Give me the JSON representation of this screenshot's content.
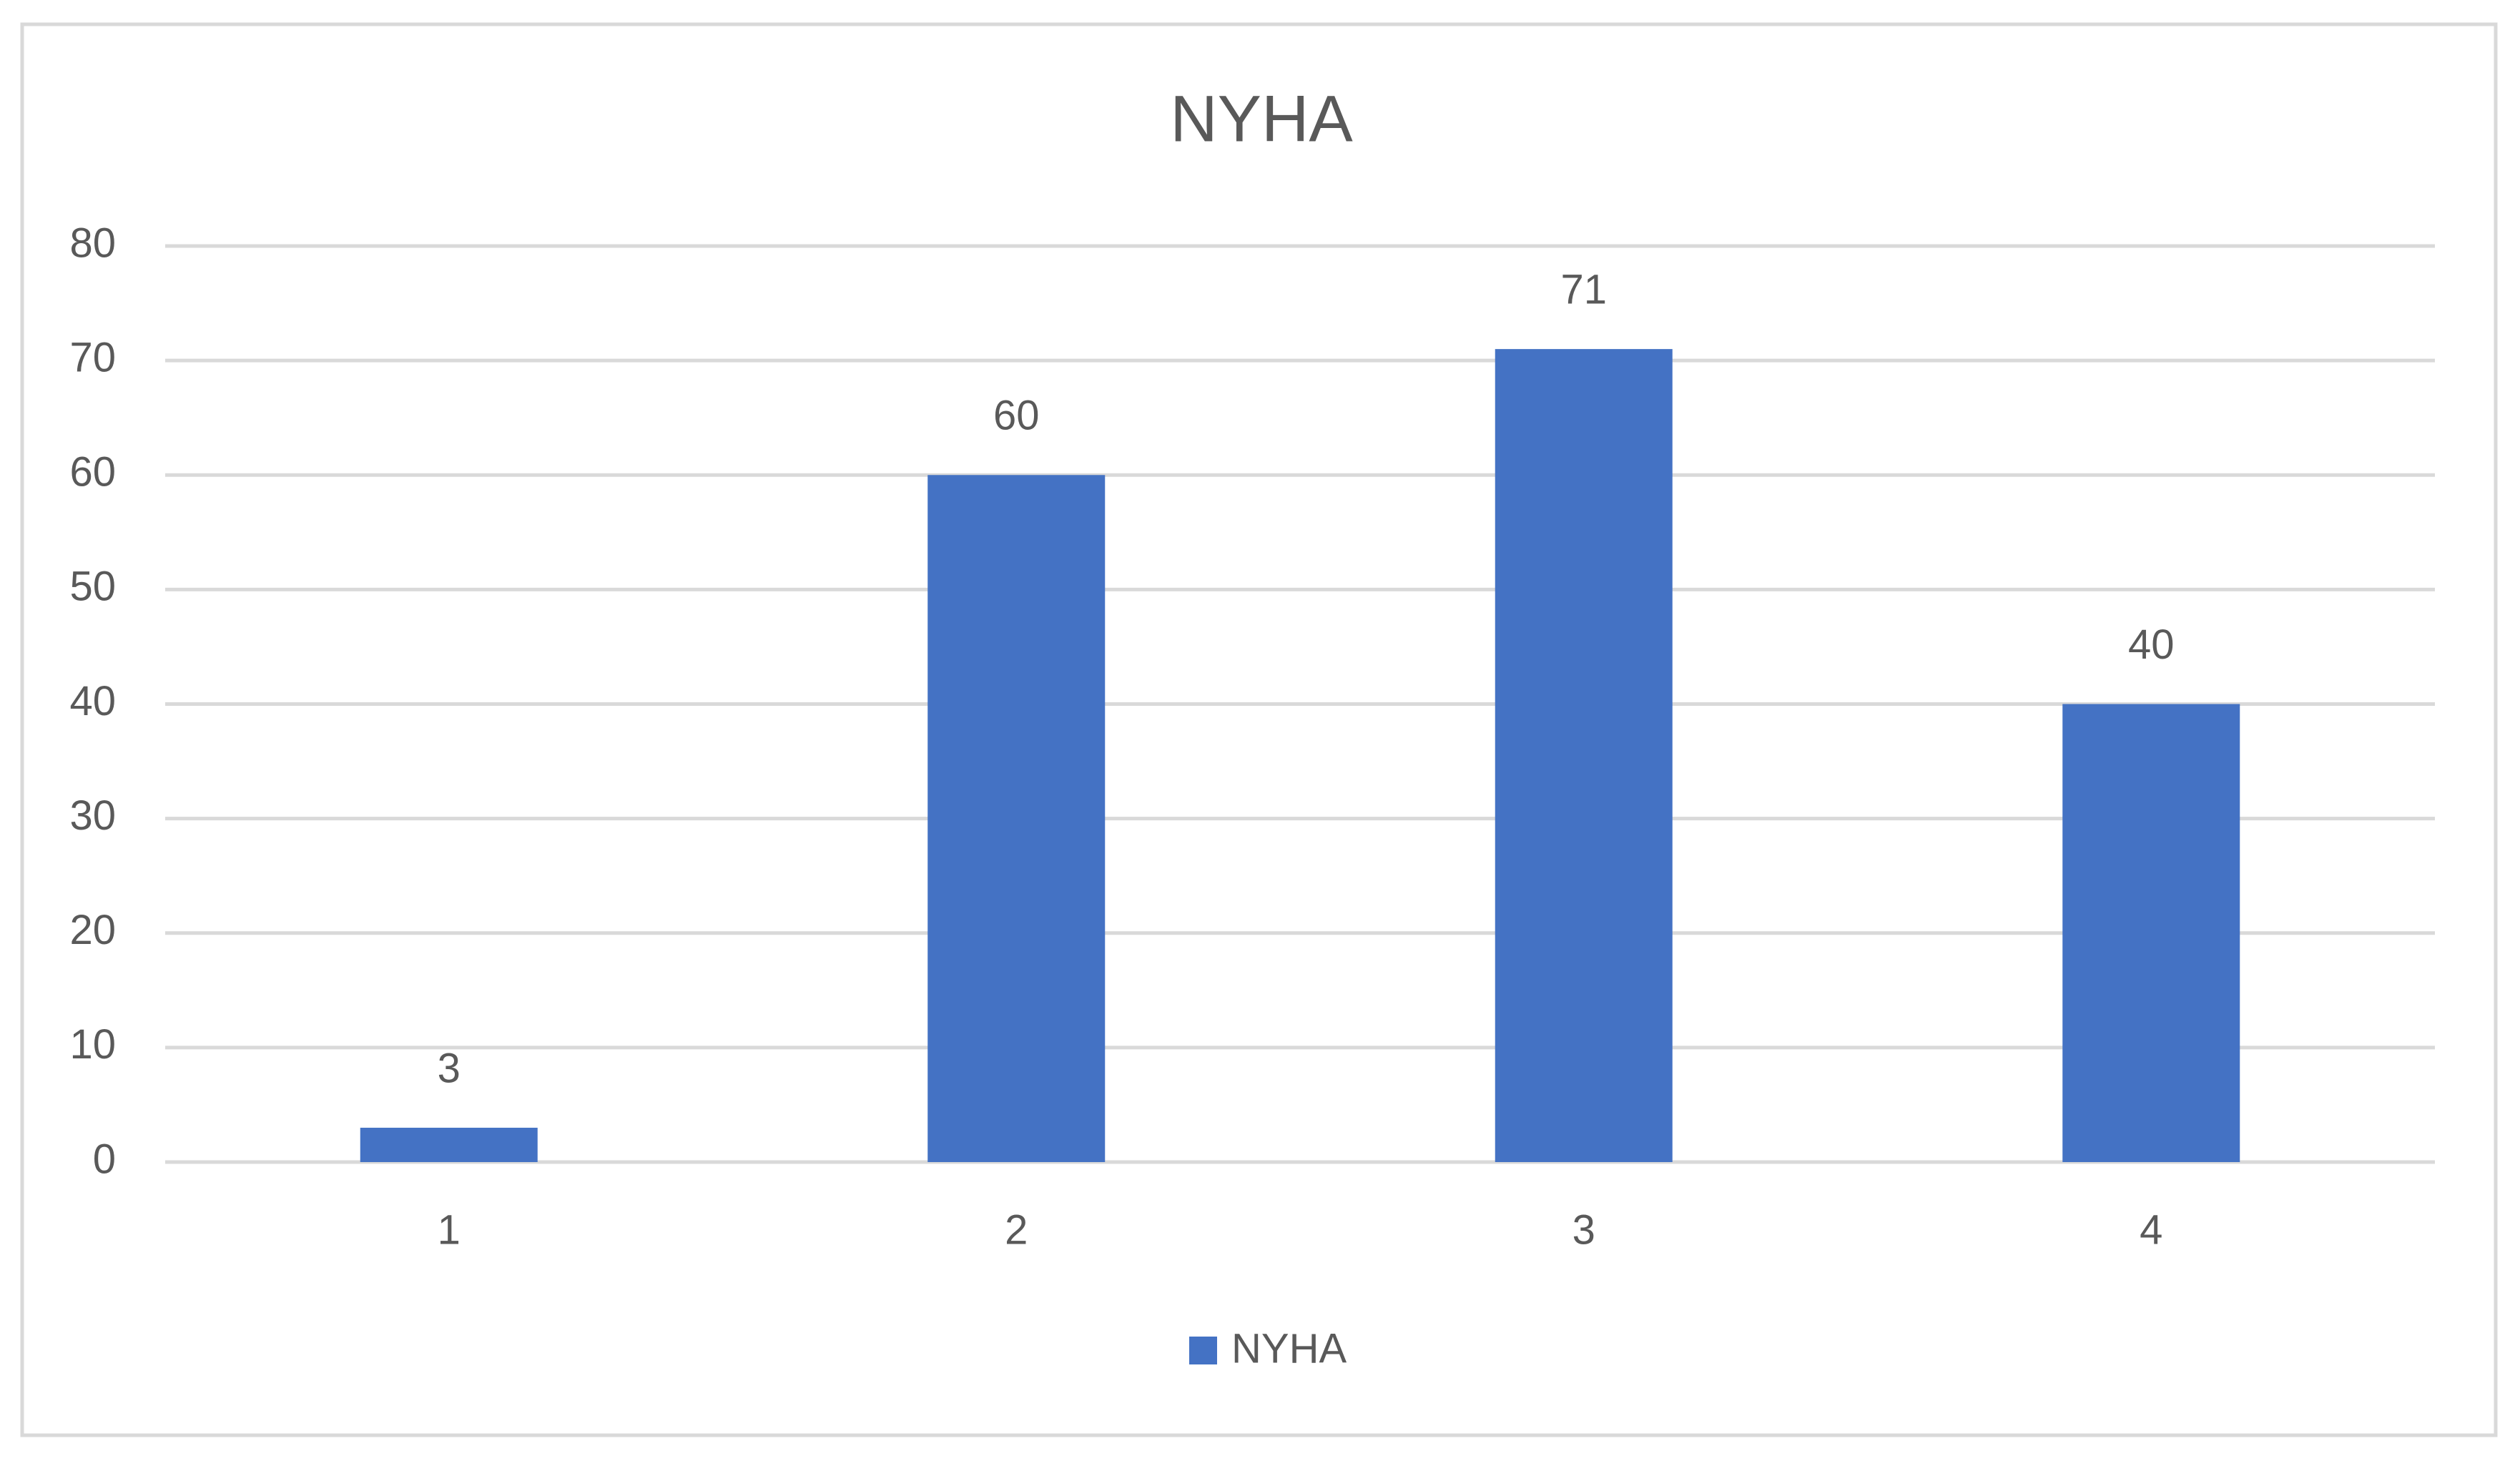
{
  "chart_data": {
    "type": "bar",
    "title": "NYHA",
    "categories": [
      "1",
      "2",
      "3",
      "4"
    ],
    "series": [
      {
        "name": "NYHA",
        "color": "#4472c4",
        "values": [
          3,
          60,
          71,
          40
        ]
      }
    ],
    "ylim": [
      0,
      80
    ],
    "yticks": [
      0,
      10,
      20,
      30,
      40,
      50,
      60,
      70,
      80
    ],
    "grid": true,
    "legend": "bottom"
  }
}
